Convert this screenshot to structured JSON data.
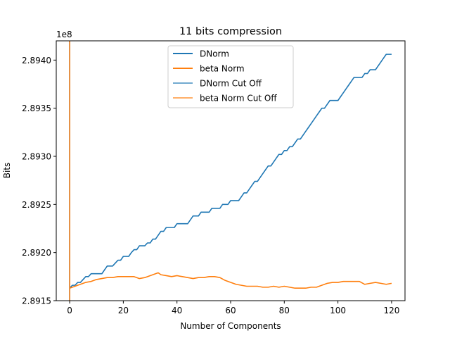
{
  "chart_data": {
    "type": "line",
    "title": "11 bits compression",
    "xlabel": "Number of Components",
    "ylabel": "Bits",
    "offset_text": "1e8",
    "xlim": [
      -5,
      125
    ],
    "ylim": [
      289150000,
      289420000
    ],
    "x_ticks": [
      0,
      20,
      40,
      60,
      80,
      100,
      120
    ],
    "x_tick_labels": [
      "0",
      "20",
      "40",
      "60",
      "80",
      "100",
      "120"
    ],
    "y_ticks": [
      289150000,
      289200000,
      289250000,
      289300000,
      289350000,
      289400000
    ],
    "y_tick_labels": [
      "2.8915",
      "2.8920",
      "2.8925",
      "2.8930",
      "2.8935",
      "2.8940"
    ],
    "grid": false,
    "legend_position": "top-center",
    "colors": {
      "blue": "#1f77b4",
      "orange": "#ff7f0e"
    },
    "series": [
      {
        "name": "DNorm",
        "color": "#1f77b4",
        "x": [
          0,
          1,
          2,
          3,
          4,
          5,
          6,
          7,
          8,
          9,
          10,
          12,
          13,
          14,
          15,
          16,
          17,
          18,
          19,
          20,
          21,
          22,
          23,
          24,
          25,
          26,
          27,
          28,
          29,
          30,
          31,
          32,
          33,
          34,
          35,
          36,
          37,
          38,
          39,
          40,
          41,
          42,
          43,
          44,
          45,
          46,
          47,
          48,
          49,
          50,
          51,
          52,
          53,
          54,
          55,
          56,
          57,
          58,
          59,
          60,
          61,
          62,
          63,
          64,
          65,
          66,
          67,
          68,
          69,
          70,
          71,
          72,
          73,
          74,
          75,
          76,
          77,
          78,
          79,
          80,
          81,
          82,
          83,
          84,
          85,
          86,
          87,
          88,
          89,
          90,
          91,
          92,
          93,
          94,
          95,
          96,
          97,
          98,
          99,
          100,
          101,
          102,
          103,
          104,
          105,
          106,
          107,
          108,
          109,
          110,
          111,
          112,
          113,
          114,
          115,
          116,
          117,
          118,
          119,
          120
        ],
        "y": [
          289163000,
          289166000,
          289166000,
          289169000,
          289169000,
          289172000,
          289175000,
          289175000,
          289178000,
          289178000,
          289178000,
          289178000,
          289182000,
          289186000,
          289186000,
          289186000,
          289189000,
          289192000,
          289192000,
          289196000,
          289196000,
          289196000,
          289200000,
          289203000,
          289203000,
          289207000,
          289207000,
          289207000,
          289210000,
          289210000,
          289214000,
          289214000,
          289218000,
          289222000,
          289222000,
          289226000,
          289226000,
          289226000,
          289226000,
          289230000,
          289230000,
          289230000,
          289230000,
          289230000,
          289234000,
          289238000,
          289238000,
          289238000,
          289242000,
          289242000,
          289242000,
          289242000,
          289246000,
          289246000,
          289246000,
          289246000,
          289250000,
          289250000,
          289250000,
          289254000,
          289254000,
          289254000,
          289254000,
          289258000,
          289262000,
          289262000,
          289266000,
          289270000,
          289274000,
          289274000,
          289278000,
          289282000,
          289286000,
          289290000,
          289290000,
          289294000,
          289298000,
          289302000,
          289302000,
          289306000,
          289306000,
          289310000,
          289310000,
          289314000,
          289318000,
          289318000,
          289322000,
          289326000,
          289330000,
          289334000,
          289338000,
          289342000,
          289346000,
          289350000,
          289350000,
          289354000,
          289358000,
          289358000,
          289358000,
          289358000,
          289362000,
          289366000,
          289370000,
          289374000,
          289378000,
          289382000,
          289382000,
          289382000,
          289382000,
          289386000,
          289386000,
          289390000,
          289390000,
          289390000,
          289394000,
          289398000,
          289402000,
          289406000,
          289406000,
          289406000
        ]
      },
      {
        "name": "beta Norm",
        "color": "#ff7f0e",
        "x": [
          0,
          2,
          4,
          6,
          8,
          10,
          12,
          14,
          16,
          18,
          20,
          22,
          24,
          26,
          28,
          30,
          32,
          33,
          34,
          36,
          38,
          40,
          42,
          44,
          46,
          48,
          50,
          52,
          54,
          56,
          58,
          60,
          62,
          64,
          66,
          68,
          70,
          72,
          74,
          76,
          78,
          80,
          82,
          84,
          86,
          88,
          90,
          92,
          94,
          96,
          98,
          100,
          102,
          104,
          106,
          108,
          110,
          112,
          114,
          116,
          118,
          120
        ],
        "y": [
          289163000,
          289165000,
          289167000,
          289169000,
          289170000,
          289172000,
          289173000,
          289174000,
          289174000,
          289175000,
          289175000,
          289175000,
          289175000,
          289173000,
          289174000,
          289176000,
          289178000,
          289179000,
          289177000,
          289176000,
          289175000,
          289176000,
          289175000,
          289174000,
          289173000,
          289174000,
          289174000,
          289175000,
          289175000,
          289174000,
          289171000,
          289169000,
          289167000,
          289166000,
          289165000,
          289165000,
          289165000,
          289164000,
          289164000,
          289165000,
          289164000,
          289165000,
          289164000,
          289163000,
          289163000,
          289163000,
          289164000,
          289164000,
          289166000,
          289168000,
          289169000,
          289169000,
          289170000,
          289170000,
          289170000,
          289170000,
          289167000,
          289168000,
          289169000,
          289168000,
          289167000,
          289168000
        ]
      },
      {
        "name": "DNorm Cut Off",
        "color": "#1f77b4",
        "kind": "vertical_line",
        "x_value": 0
      },
      {
        "name": "beta Norm Cut Off",
        "color": "#ff7f0e",
        "kind": "vertical_line",
        "x_value": 0
      }
    ]
  }
}
